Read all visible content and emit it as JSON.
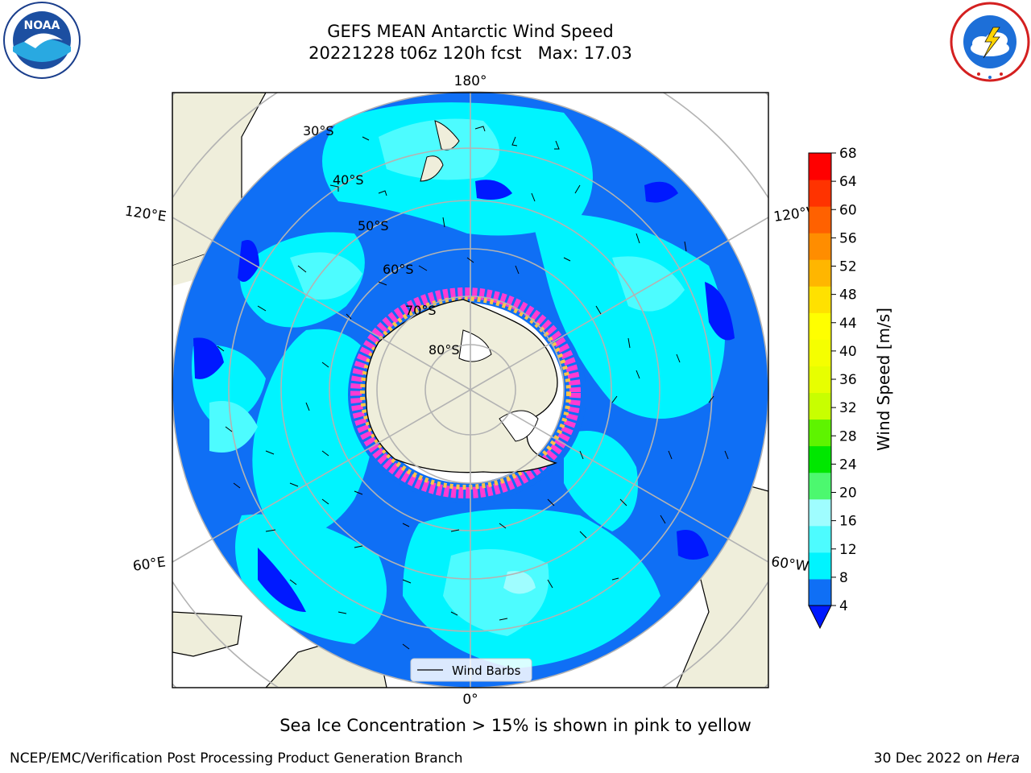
{
  "title": {
    "line1": "GEFS MEAN Antarctic Wind Speed",
    "line2": "20221228 t06z 120h fcst   Max: 17.03"
  },
  "map": {
    "longitude_labels": {
      "top": "180°",
      "bottom": "0°",
      "upper_left": "120°E",
      "upper_right": "120°W",
      "lower_left": "60°E",
      "lower_right": "60°W"
    },
    "latitude_labels": [
      "30°S",
      "40°S",
      "50°S",
      "60°S",
      "70°S",
      "80°S"
    ],
    "legend_label": "Wind Barbs",
    "projection": "south-polar-stereographic",
    "fields": [
      {
        "name": "wind-speed",
        "style": "filled-contours"
      },
      {
        "name": "wind-barbs",
        "style": "barbs"
      },
      {
        "name": "sea-ice-concentration",
        "style": "pink-to-yellow-shading"
      }
    ],
    "colors": {
      "land": "#efeedb",
      "ocean_4_8": "#0f6ff5",
      "ocean_8_12": "#00f4ff",
      "ocean_12_16": "#4dfcff",
      "ocean_16_20": "#9ffdff",
      "ice_pink": "#ff3bd2",
      "ice_yellow": "#ffc447",
      "under_color": "#0019ff"
    }
  },
  "colorbar": {
    "label": "Wind Speed [m/s]",
    "ticks": [
      "4",
      "8",
      "12",
      "16",
      "20",
      "24",
      "28",
      "32",
      "36",
      "40",
      "44",
      "48",
      "52",
      "56",
      "60",
      "64",
      "68"
    ],
    "colors": [
      "#0f6ff5",
      "#00f4ff",
      "#4dfcff",
      "#9ffdff",
      "#4cf86f",
      "#00e700",
      "#5ef400",
      "#c8ff00",
      "#e7ff00",
      "#f5ff00",
      "#ffff00",
      "#ffe100",
      "#ffb600",
      "#ff8d00",
      "#ff6100",
      "#ff3300",
      "#ff0000"
    ],
    "under_color": "#0019ff"
  },
  "note": "Sea Ice Concentration > 15% is shown in pink to yellow",
  "footer": {
    "left": "NCEP/EMC/Verification Post Processing Product Generation Branch",
    "right_prefix": "30 Dec 2022 on ",
    "right_machine": "Hera"
  }
}
